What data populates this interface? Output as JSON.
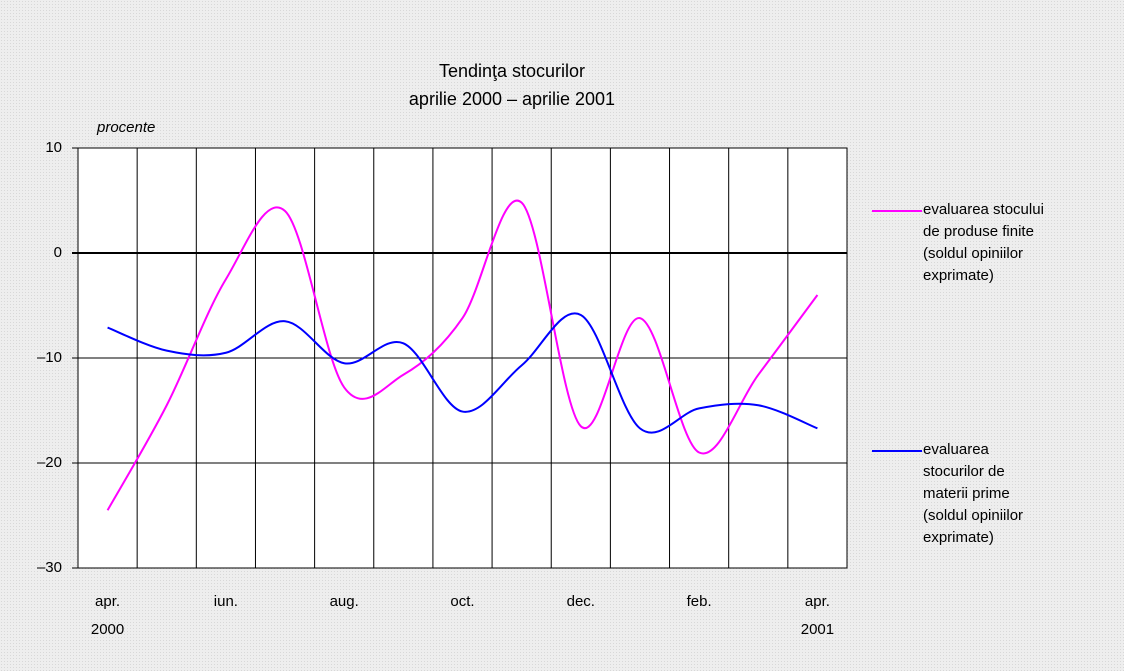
{
  "chart_data": {
    "type": "line",
    "title": [
      "Tendinţa stocurilor",
      "aprilie 2000 – aprilie 2001"
    ],
    "y_label": "procente",
    "categories": [
      "apr.\n2000",
      null,
      "iun.",
      null,
      "aug.",
      null,
      "oct.",
      null,
      "dec.",
      null,
      "feb.",
      null,
      "apr.\n2001"
    ],
    "series": [
      {
        "name": "evaluarea stocului de produse finite (soldul opiniilor exprimate)",
        "color": "#ff00ff",
        "values": [
          -24.5,
          -14.5,
          -2.5,
          4,
          -12.8,
          -11.6,
          -6.2,
          4.8,
          -16.5,
          -6.2,
          -19,
          -11.6,
          -4
        ]
      },
      {
        "name": "evaluarea stocurilor de materii prime (soldul opiniilor exprimate)",
        "color": "#0000ff",
        "values": [
          -7.1,
          -9.3,
          -9.5,
          -6.5,
          -10.5,
          -8.6,
          -15.1,
          -10.7,
          -5.9,
          -16.7,
          -14.8,
          -14.5,
          -16.7
        ]
      }
    ],
    "ylim": [
      -30,
      10
    ],
    "yticks": [
      {
        "value": -30,
        "label": "–30"
      },
      {
        "value": -20,
        "label": "–20"
      },
      {
        "value": -10,
        "label": "–10"
      },
      0,
      10
    ],
    "grid": true,
    "legend": "right"
  }
}
